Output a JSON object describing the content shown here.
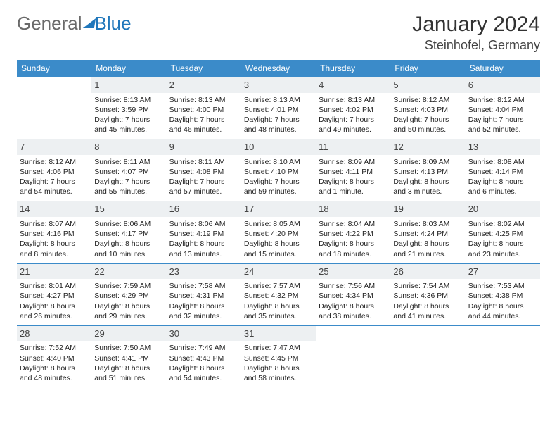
{
  "logo": {
    "text1": "General",
    "text2": "Blue"
  },
  "title": "January 2024",
  "location": "Steinhofel, Germany",
  "colors": {
    "header_bg": "#3b8bc9",
    "header_text": "#ffffff",
    "daynum_bg": "#edf0f2",
    "cell_border": "#3b8bc9",
    "logo_gray": "#6a6a6a",
    "logo_blue": "#2077bb"
  },
  "dayHeaders": [
    "Sunday",
    "Monday",
    "Tuesday",
    "Wednesday",
    "Thursday",
    "Friday",
    "Saturday"
  ],
  "firstDayOfWeek": 1,
  "daysInMonth": 31,
  "days": {
    "1": {
      "sunrise": "8:13 AM",
      "sunset": "3:59 PM",
      "daylight": "7 hours and 45 minutes."
    },
    "2": {
      "sunrise": "8:13 AM",
      "sunset": "4:00 PM",
      "daylight": "7 hours and 46 minutes."
    },
    "3": {
      "sunrise": "8:13 AM",
      "sunset": "4:01 PM",
      "daylight": "7 hours and 48 minutes."
    },
    "4": {
      "sunrise": "8:13 AM",
      "sunset": "4:02 PM",
      "daylight": "7 hours and 49 minutes."
    },
    "5": {
      "sunrise": "8:12 AM",
      "sunset": "4:03 PM",
      "daylight": "7 hours and 50 minutes."
    },
    "6": {
      "sunrise": "8:12 AM",
      "sunset": "4:04 PM",
      "daylight": "7 hours and 52 minutes."
    },
    "7": {
      "sunrise": "8:12 AM",
      "sunset": "4:06 PM",
      "daylight": "7 hours and 54 minutes."
    },
    "8": {
      "sunrise": "8:11 AM",
      "sunset": "4:07 PM",
      "daylight": "7 hours and 55 minutes."
    },
    "9": {
      "sunrise": "8:11 AM",
      "sunset": "4:08 PM",
      "daylight": "7 hours and 57 minutes."
    },
    "10": {
      "sunrise": "8:10 AM",
      "sunset": "4:10 PM",
      "daylight": "7 hours and 59 minutes."
    },
    "11": {
      "sunrise": "8:09 AM",
      "sunset": "4:11 PM",
      "daylight": "8 hours and 1 minute."
    },
    "12": {
      "sunrise": "8:09 AM",
      "sunset": "4:13 PM",
      "daylight": "8 hours and 3 minutes."
    },
    "13": {
      "sunrise": "8:08 AM",
      "sunset": "4:14 PM",
      "daylight": "8 hours and 6 minutes."
    },
    "14": {
      "sunrise": "8:07 AM",
      "sunset": "4:16 PM",
      "daylight": "8 hours and 8 minutes."
    },
    "15": {
      "sunrise": "8:06 AM",
      "sunset": "4:17 PM",
      "daylight": "8 hours and 10 minutes."
    },
    "16": {
      "sunrise": "8:06 AM",
      "sunset": "4:19 PM",
      "daylight": "8 hours and 13 minutes."
    },
    "17": {
      "sunrise": "8:05 AM",
      "sunset": "4:20 PM",
      "daylight": "8 hours and 15 minutes."
    },
    "18": {
      "sunrise": "8:04 AM",
      "sunset": "4:22 PM",
      "daylight": "8 hours and 18 minutes."
    },
    "19": {
      "sunrise": "8:03 AM",
      "sunset": "4:24 PM",
      "daylight": "8 hours and 21 minutes."
    },
    "20": {
      "sunrise": "8:02 AM",
      "sunset": "4:25 PM",
      "daylight": "8 hours and 23 minutes."
    },
    "21": {
      "sunrise": "8:01 AM",
      "sunset": "4:27 PM",
      "daylight": "8 hours and 26 minutes."
    },
    "22": {
      "sunrise": "7:59 AM",
      "sunset": "4:29 PM",
      "daylight": "8 hours and 29 minutes."
    },
    "23": {
      "sunrise": "7:58 AM",
      "sunset": "4:31 PM",
      "daylight": "8 hours and 32 minutes."
    },
    "24": {
      "sunrise": "7:57 AM",
      "sunset": "4:32 PM",
      "daylight": "8 hours and 35 minutes."
    },
    "25": {
      "sunrise": "7:56 AM",
      "sunset": "4:34 PM",
      "daylight": "8 hours and 38 minutes."
    },
    "26": {
      "sunrise": "7:54 AM",
      "sunset": "4:36 PM",
      "daylight": "8 hours and 41 minutes."
    },
    "27": {
      "sunrise": "7:53 AM",
      "sunset": "4:38 PM",
      "daylight": "8 hours and 44 minutes."
    },
    "28": {
      "sunrise": "7:52 AM",
      "sunset": "4:40 PM",
      "daylight": "8 hours and 48 minutes."
    },
    "29": {
      "sunrise": "7:50 AM",
      "sunset": "4:41 PM",
      "daylight": "8 hours and 51 minutes."
    },
    "30": {
      "sunrise": "7:49 AM",
      "sunset": "4:43 PM",
      "daylight": "8 hours and 54 minutes."
    },
    "31": {
      "sunrise": "7:47 AM",
      "sunset": "4:45 PM",
      "daylight": "8 hours and 58 minutes."
    }
  },
  "labels": {
    "sunrise": "Sunrise:",
    "sunset": "Sunset:",
    "daylight": "Daylight:"
  }
}
